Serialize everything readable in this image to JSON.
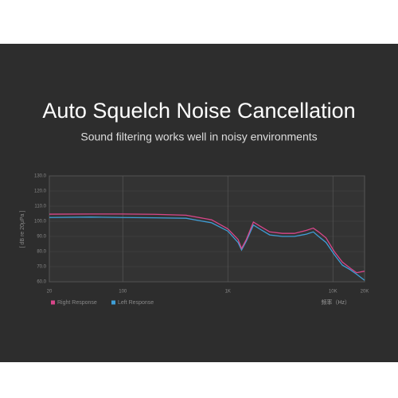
{
  "chart_data": {
    "type": "line",
    "title": "Auto Squelch Noise Cancellation",
    "subtitle": "Sound filtering works well in noisy environments",
    "y_label": "[ dB re 20μPa ]",
    "x_label": "频率（Hz）",
    "x": [
      20,
      50,
      100,
      200,
      400,
      700,
      1000,
      1250,
      1350,
      1500,
      1750,
      2000,
      2500,
      3300,
      4300,
      5600,
      6500,
      7300,
      8600,
      10300,
      12300,
      14600,
      16800,
      20000
    ],
    "series": [
      {
        "name": "Right Response",
        "color": "#d9468a",
        "values": [
          104.7,
          104.8,
          104.8,
          104.6,
          104,
          101,
          95,
          88,
          82,
          88,
          99.5,
          97,
          93,
          92,
          92,
          94,
          95.5,
          93,
          89,
          80,
          73,
          69,
          66,
          67
        ]
      },
      {
        "name": "Left Response",
        "color": "#3f9fd8",
        "values": [
          102.5,
          102.8,
          102.5,
          102.3,
          102,
          99,
          93.5,
          86,
          81,
          87,
          97.5,
          95,
          91,
          90,
          90,
          91.5,
          93,
          90,
          86,
          78,
          71,
          68,
          65,
          61
        ]
      }
    ],
    "xscale": "log",
    "xlim": [
      20,
      20000
    ],
    "xticks": [
      20,
      100,
      {
        "value": 1000,
        "label": "1K"
      },
      {
        "value": 10000,
        "label": "10K"
      },
      {
        "value": 20000,
        "label": "20K"
      }
    ],
    "ylim": [
      60,
      130
    ],
    "yticks": [
      {
        "value": 130,
        "label": "130.0"
      },
      {
        "value": 120,
        "label": "120.0"
      },
      {
        "value": 110,
        "label": "110.0"
      },
      {
        "value": 100,
        "label": "100.0"
      },
      {
        "value": 90,
        "label": "90.0"
      },
      {
        "value": 80,
        "label": "80.0"
      },
      {
        "value": 70,
        "label": "70.0"
      },
      {
        "value": 60,
        "label": "60.0"
      }
    ],
    "grid": true,
    "legend": "bottom-left"
  }
}
